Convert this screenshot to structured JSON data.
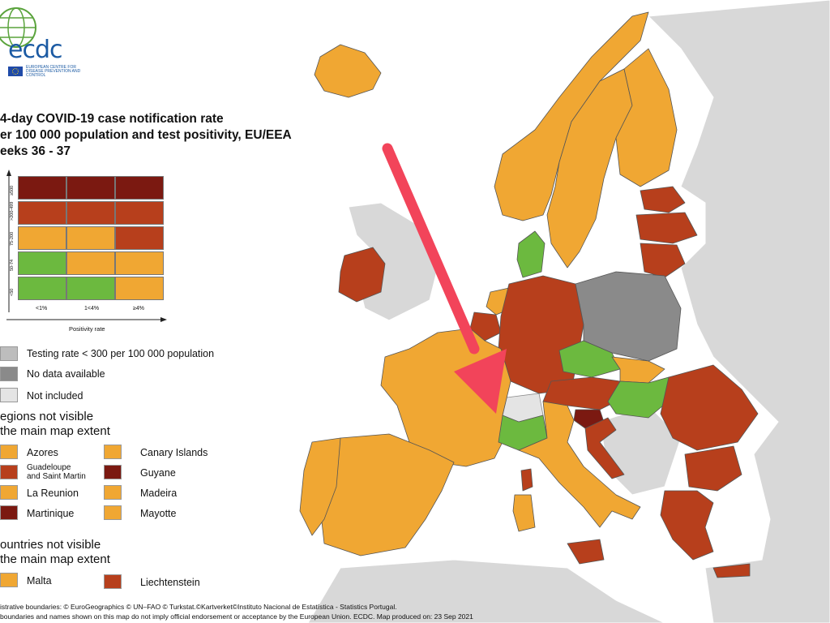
{
  "logo": {
    "text": "ecdc",
    "subtitle": "EUROPEAN CENTRE FOR DISEASE PREVENTION AND CONTROL"
  },
  "title": {
    "line1": "4-day COVID-19 case notification rate",
    "line2": "er 100 000 population and test positivity, EU/EEA",
    "line3": "eeks 36 - 37"
  },
  "colors": {
    "dark_red": "#7b1911",
    "red": "#b73f1c",
    "orange": "#f0a733",
    "green": "#6cb93f",
    "testing_grey": "#bdbdbd",
    "no_data_grey": "#8a8a8a",
    "not_included": "#e4e4e4",
    "sea": "#ffffff",
    "non_eu": "#d8d8d8",
    "arrow": "#f2445a"
  },
  "matrix": {
    "y_labels": [
      "≥500",
      ">200-499",
      "75-200",
      "50-74",
      "<50"
    ],
    "x_labels": [
      "<1%",
      "1<4%",
      "≥4%"
    ],
    "x_title": "Positivity rate",
    "cells": [
      [
        "dark_red",
        "dark_red",
        "dark_red"
      ],
      [
        "red",
        "red",
        "red"
      ],
      [
        "orange",
        "orange",
        "red"
      ],
      [
        "green",
        "orange",
        "orange"
      ],
      [
        "green",
        "green",
        "orange"
      ]
    ]
  },
  "legend": {
    "testing": "Testing rate < 300 per 100 000 population",
    "no_data": "No data available",
    "not_included": "Not included"
  },
  "regions_section": {
    "line1": "egions not visible",
    "line2": "the main map extent"
  },
  "regions": [
    {
      "name": "Azores",
      "color": "orange"
    },
    {
      "name": "Canary Islands",
      "color": "orange"
    },
    {
      "name": "Guadeloupe and Saint Martin",
      "line1": "Guadeloupe",
      "line2": "and Saint Martin",
      "color": "red"
    },
    {
      "name": "Guyane",
      "color": "dark_red"
    },
    {
      "name": "La Reunion",
      "color": "orange"
    },
    {
      "name": "Madeira",
      "color": "orange"
    },
    {
      "name": "Martinique",
      "color": "dark_red"
    },
    {
      "name": "Mayotte",
      "color": "orange"
    }
  ],
  "countries_section": {
    "line1": "ountries not visible",
    "line2": "the main map extent"
  },
  "countries": [
    {
      "name": "Malta",
      "color": "orange"
    },
    {
      "name": "Liechtenstein",
      "color": "red"
    }
  ],
  "footer": {
    "line1": "istrative boundaries: © EuroGeographics © UN–FAO © Turkstat.©Kartverket©Instituto Nacional de Estatística - Statistics Portugal.",
    "line2": "boundaries and names shown on this map do not imply official endorsement or acceptance by the European Union. ECDC. Map produced on: 23 Sep 2021"
  },
  "map_regions": [
    {
      "name": "Iceland",
      "color": "orange"
    },
    {
      "name": "Norway",
      "color": "orange"
    },
    {
      "name": "Sweden",
      "color": "orange"
    },
    {
      "name": "Finland",
      "color": "orange"
    },
    {
      "name": "Estonia",
      "color": "red"
    },
    {
      "name": "Latvia",
      "color": "red"
    },
    {
      "name": "Lithuania",
      "color": "red"
    },
    {
      "name": "Ireland",
      "color": "red"
    },
    {
      "name": "Denmark",
      "color": "green"
    },
    {
      "name": "Netherlands",
      "color": "orange"
    },
    {
      "name": "Belgium",
      "color": "red"
    },
    {
      "name": "Germany",
      "color": "red"
    },
    {
      "name": "Poland",
      "color": "no_data_grey"
    },
    {
      "name": "Czechia",
      "color": "green"
    },
    {
      "name": "Slovakia",
      "color": "orange"
    },
    {
      "name": "Austria",
      "color": "red"
    },
    {
      "name": "Hungary",
      "color": "green"
    },
    {
      "name": "Slovenia",
      "color": "dark_red"
    },
    {
      "name": "Croatia",
      "color": "red"
    },
    {
      "name": "Romania",
      "color": "red"
    },
    {
      "name": "Bulgaria",
      "color": "red"
    },
    {
      "name": "Greece",
      "color": "red"
    },
    {
      "name": "France",
      "color": "orange"
    },
    {
      "name": "Switzerland",
      "color": "not_included"
    },
    {
      "name": "Italy North",
      "color": "green"
    },
    {
      "name": "Italy",
      "color": "orange"
    },
    {
      "name": "Spain",
      "color": "orange"
    },
    {
      "name": "Portugal",
      "color": "orange"
    },
    {
      "name": "Corsica",
      "color": "red"
    },
    {
      "name": "Sardinia",
      "color": "orange"
    },
    {
      "name": "Sicily",
      "color": "red"
    },
    {
      "name": "Cyprus",
      "color": "red"
    }
  ]
}
